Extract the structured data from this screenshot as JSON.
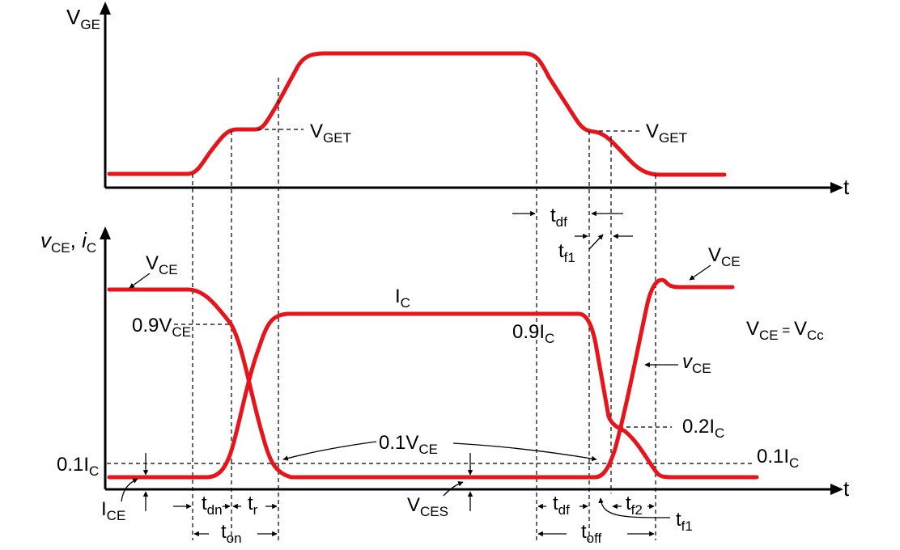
{
  "colors": {
    "waveform": "#e8141b",
    "axis": "#000000",
    "background": "#ffffff"
  },
  "top_plot": {
    "y_axis_label": {
      "main": "V",
      "sub": "GE"
    },
    "x_axis_label": "t",
    "vget_left": {
      "main": "V",
      "sub": "GET"
    },
    "vget_right": {
      "main": "V",
      "sub": "GET"
    },
    "tdf": {
      "main": "t",
      "sub": "df"
    },
    "tf1": {
      "main": "t",
      "sub": "f1"
    }
  },
  "bottom_plot": {
    "y_axis_label": {
      "v": "v",
      "v_sub": "CE",
      "sep": ", ",
      "i": "i",
      "i_sub": "C"
    },
    "x_axis_label": "t",
    "vce_top_left": {
      "main": "V",
      "sub": "CE"
    },
    "vce_top_right": {
      "main": "V",
      "sub": "CE"
    },
    "ic_label": {
      "main": "I",
      "sub": "C"
    },
    "level_09vce": {
      "main": "0.9V",
      "sub": "CE"
    },
    "level_09ic": {
      "main": "0.9I",
      "sub": "C"
    },
    "level_01ic_left": {
      "main": "0.1I",
      "sub": "C"
    },
    "level_01ic_right": {
      "main": "0.1I",
      "sub": "C"
    },
    "level_02ic": {
      "main": "0.2I",
      "sub": "C"
    },
    "level_01vce": {
      "main": "0.1V",
      "sub": "CE"
    },
    "ice": {
      "main": "I",
      "sub": "CE"
    },
    "vces": {
      "main": "V",
      "sub": "CES"
    },
    "vce_equation": {
      "a": "V",
      "a_sub": "CE",
      "eq": " = ",
      "b": "V",
      "b_sub": "Cc"
    },
    "vce_small": {
      "main": "v",
      "sub": "CE"
    },
    "tdn": {
      "main": "t",
      "sub": "dn"
    },
    "tr": {
      "main": "t",
      "sub": "r"
    },
    "ton": {
      "main": "t",
      "sub": "on"
    },
    "tdf": {
      "main": "t",
      "sub": "df"
    },
    "tf2": {
      "main": "t",
      "sub": "f2"
    },
    "toff": {
      "main": "t",
      "sub": "off"
    },
    "tf1": {
      "main": "t",
      "sub": "f1"
    }
  }
}
